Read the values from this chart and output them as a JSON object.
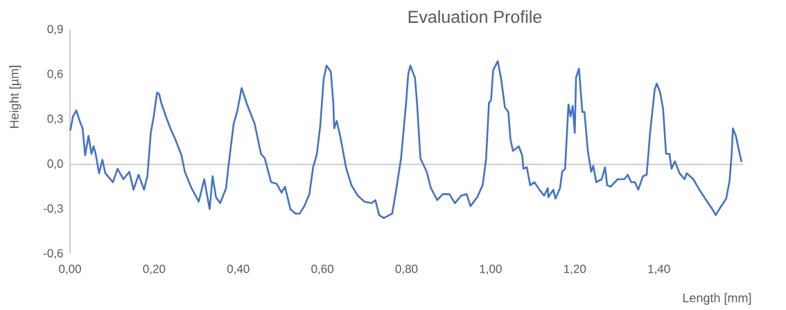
{
  "chart_data": {
    "type": "line",
    "title": "Evaluation Profile",
    "xlabel": "Length [mm]",
    "ylabel": "Height [µm]",
    "color": "#4472c4",
    "x": [
      0.001,
      0.007,
      0.015,
      0.023,
      0.03,
      0.036,
      0.044,
      0.051,
      0.056,
      0.061,
      0.069,
      0.077,
      0.084,
      0.102,
      0.113,
      0.127,
      0.141,
      0.151,
      0.163,
      0.176,
      0.184,
      0.192,
      0.199,
      0.207,
      0.212,
      0.217,
      0.228,
      0.24,
      0.25,
      0.265,
      0.273,
      0.289,
      0.306,
      0.319,
      0.332,
      0.339,
      0.347,
      0.357,
      0.371,
      0.376,
      0.389,
      0.398,
      0.408,
      0.421,
      0.439,
      0.454,
      0.463,
      0.478,
      0.491,
      0.503,
      0.511,
      0.524,
      0.536,
      0.546,
      0.557,
      0.569,
      0.578,
      0.587,
      0.595,
      0.603,
      0.61,
      0.62,
      0.626,
      0.628,
      0.634,
      0.643,
      0.656,
      0.669,
      0.684,
      0.7,
      0.717,
      0.726,
      0.735,
      0.746,
      0.766,
      0.776,
      0.787,
      0.799,
      0.804,
      0.809,
      0.82,
      0.825,
      0.833,
      0.848,
      0.858,
      0.873,
      0.886,
      0.902,
      0.915,
      0.93,
      0.943,
      0.952,
      0.968,
      0.981,
      0.989,
      0.996,
      1.001,
      1.006,
      1.017,
      1.025,
      1.034,
      1.042,
      1.047,
      1.053,
      1.067,
      1.075,
      1.078,
      1.086,
      1.094,
      1.104,
      1.116,
      1.127,
      1.136,
      1.137,
      1.149,
      1.154,
      1.165,
      1.17,
      1.177,
      1.185,
      1.19,
      1.195,
      1.2,
      1.203,
      1.21,
      1.218,
      1.223,
      1.231,
      1.239,
      1.244,
      1.251,
      1.264,
      1.272,
      1.277,
      1.285,
      1.302,
      1.318,
      1.326,
      1.334,
      1.343,
      1.351,
      1.362,
      1.371,
      1.379,
      1.39,
      1.395,
      1.403,
      1.41,
      1.417,
      1.425,
      1.43,
      1.438,
      1.449,
      1.461,
      1.466,
      1.482,
      1.494,
      1.51,
      1.527,
      1.535,
      1.546,
      1.56,
      1.568,
      1.573,
      1.576,
      1.583,
      1.589,
      1.596
    ],
    "values": [
      0.23,
      0.32,
      0.36,
      0.29,
      0.24,
      0.06,
      0.19,
      0.07,
      0.12,
      0.07,
      -0.06,
      0.03,
      -0.06,
      -0.12,
      -0.03,
      -0.1,
      -0.05,
      -0.17,
      -0.07,
      -0.17,
      -0.08,
      0.21,
      0.32,
      0.48,
      0.47,
      0.41,
      0.32,
      0.23,
      0.17,
      0.06,
      -0.05,
      -0.16,
      -0.25,
      -0.1,
      -0.3,
      -0.08,
      -0.22,
      -0.26,
      -0.16,
      -0.03,
      0.27,
      0.36,
      0.51,
      0.4,
      0.27,
      0.07,
      0.04,
      -0.12,
      -0.13,
      -0.19,
      -0.15,
      -0.3,
      -0.33,
      -0.33,
      -0.28,
      -0.2,
      -0.02,
      0.07,
      0.26,
      0.57,
      0.66,
      0.62,
      0.41,
      0.24,
      0.29,
      0.18,
      -0.02,
      -0.14,
      -0.21,
      -0.25,
      -0.26,
      -0.24,
      -0.34,
      -0.36,
      -0.33,
      -0.16,
      0.04,
      0.41,
      0.6,
      0.66,
      0.58,
      0.41,
      0.04,
      -0.05,
      -0.16,
      -0.24,
      -0.2,
      -0.2,
      -0.26,
      -0.21,
      -0.2,
      -0.28,
      -0.22,
      -0.14,
      0.03,
      0.41,
      0.43,
      0.63,
      0.69,
      0.57,
      0.38,
      0.35,
      0.17,
      0.09,
      0.12,
      0.06,
      -0.03,
      -0.02,
      -0.14,
      -0.12,
      -0.17,
      -0.21,
      -0.16,
      -0.22,
      -0.17,
      -0.23,
      -0.16,
      -0.05,
      -0.03,
      0.4,
      0.32,
      0.39,
      0.21,
      0.58,
      0.64,
      0.35,
      0.35,
      0.09,
      -0.05,
      -0.01,
      -0.12,
      -0.1,
      -0.02,
      -0.14,
      -0.15,
      -0.1,
      -0.1,
      -0.07,
      -0.12,
      -0.12,
      -0.17,
      -0.08,
      -0.07,
      0.21,
      0.5,
      0.54,
      0.48,
      0.37,
      0.07,
      0.07,
      -0.03,
      0.02,
      -0.06,
      -0.1,
      -0.06,
      -0.1,
      -0.16,
      -0.23,
      -0.3,
      -0.34,
      -0.29,
      -0.23,
      -0.11,
      0.07,
      0.24,
      0.19,
      0.11,
      0.02
    ],
    "xlim": [
      0,
      1.6
    ],
    "ylim": [
      -0.6,
      0.9
    ],
    "xticks": [
      {
        "value": 0,
        "label": "0,00"
      },
      {
        "value": 0.2,
        "label": "0,20"
      },
      {
        "value": 0.4,
        "label": "0,40"
      },
      {
        "value": 0.6,
        "label": "0,60"
      },
      {
        "value": 0.8,
        "label": "0,80"
      },
      {
        "value": 1.0,
        "label": "1,00"
      },
      {
        "value": 1.2,
        "label": "1,20"
      },
      {
        "value": 1.4,
        "label": "1,40"
      }
    ],
    "yticks": [
      {
        "value": -0.6,
        "label": "-0,6"
      },
      {
        "value": -0.3,
        "label": "-0,3"
      },
      {
        "value": 0,
        "label": "0,0"
      },
      {
        "value": 0.3,
        "label": "0,3"
      },
      {
        "value": 0.6,
        "label": "0,6"
      },
      {
        "value": 0.9,
        "label": "0,9"
      }
    ]
  }
}
